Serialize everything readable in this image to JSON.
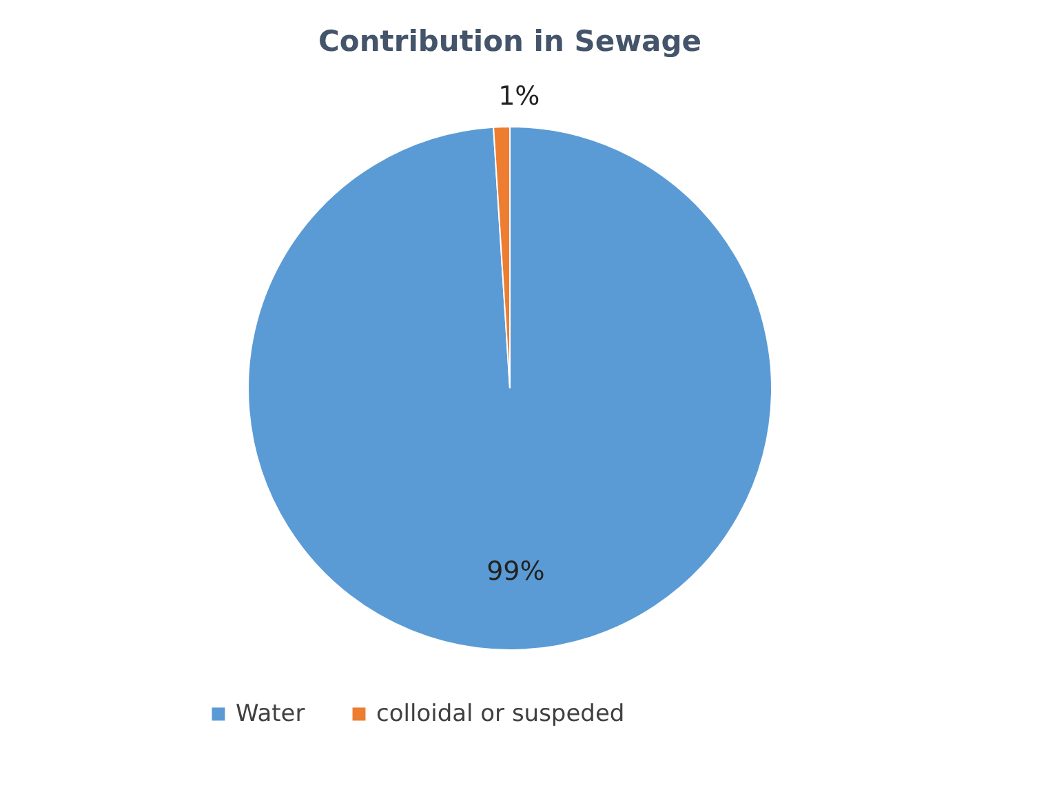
{
  "chart_data": {
    "type": "pie",
    "title": "Contribution in Sewage",
    "categories": [
      "Water",
      "colloidal or suspeded"
    ],
    "values": [
      99,
      1
    ],
    "colors": [
      "#5b9bd5",
      "#ed7d31"
    ],
    "value_labels": [
      "99%",
      "1%"
    ],
    "legend": "bottom"
  }
}
